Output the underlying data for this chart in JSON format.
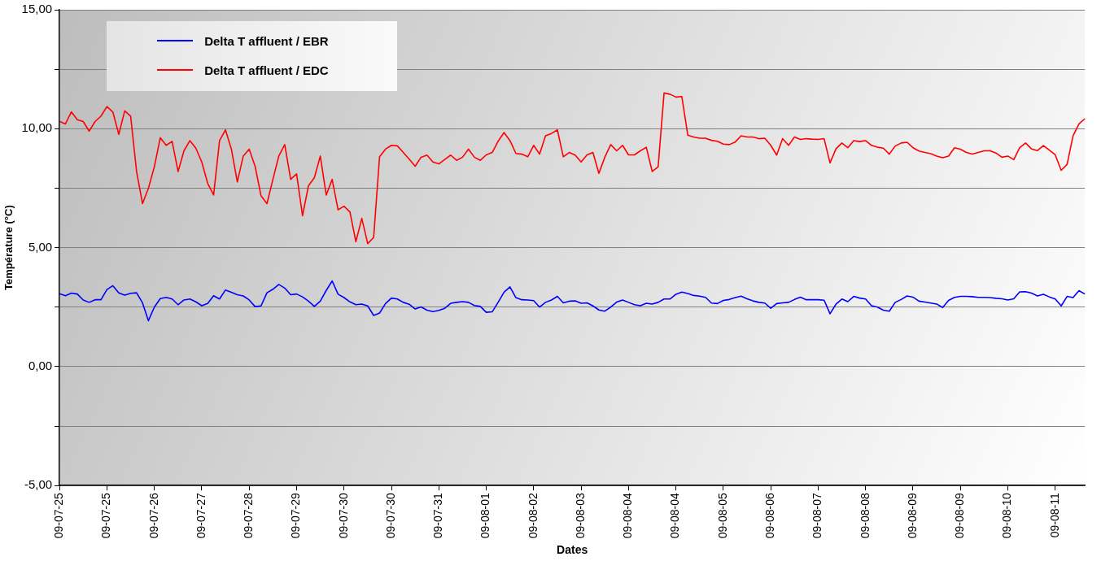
{
  "chart_data": {
    "type": "line",
    "xlabel": "Dates",
    "ylabel": "Température (°C)",
    "categories": [
      "09-07-25",
      null,
      null,
      null,
      null,
      null,
      null,
      null,
      "09-07-25",
      null,
      null,
      null,
      null,
      null,
      null,
      null,
      "09-07-26",
      null,
      null,
      null,
      null,
      null,
      null,
      null,
      "09-07-27",
      null,
      null,
      null,
      null,
      null,
      null,
      null,
      "09-07-28",
      null,
      null,
      null,
      null,
      null,
      null,
      null,
      "09-07-29",
      null,
      null,
      null,
      null,
      null,
      null,
      null,
      "09-07-30",
      null,
      null,
      null,
      null,
      null,
      null,
      null,
      "09-07-30",
      null,
      null,
      null,
      null,
      null,
      null,
      null,
      "09-07-31",
      null,
      null,
      null,
      null,
      null,
      null,
      null,
      "09-08-01",
      null,
      null,
      null,
      null,
      null,
      null,
      null,
      "09-08-02",
      null,
      null,
      null,
      null,
      null,
      null,
      null,
      "09-08-03",
      null,
      null,
      null,
      null,
      null,
      null,
      null,
      "09-08-04",
      null,
      null,
      null,
      null,
      null,
      null,
      null,
      "09-08-04",
      null,
      null,
      null,
      null,
      null,
      null,
      null,
      "09-08-05",
      null,
      null,
      null,
      null,
      null,
      null,
      null,
      "09-08-06",
      null,
      null,
      null,
      null,
      null,
      null,
      null,
      "09-08-07",
      null,
      null,
      null,
      null,
      null,
      null,
      null,
      "09-08-08",
      null,
      null,
      null,
      null,
      null,
      null,
      null,
      "09-08-09",
      null,
      null,
      null,
      null,
      null,
      null,
      null,
      "09-08-09",
      null,
      null,
      null,
      null,
      null,
      null,
      null,
      "09-08-10",
      null,
      null,
      null,
      null,
      null,
      null,
      null,
      "09-08-11",
      null,
      null,
      null,
      null,
      null
    ],
    "ylim": [
      -5,
      15
    ],
    "yticks": [
      {
        "value": -5,
        "label": "-5,00"
      },
      {
        "value": -2.5,
        "label": null
      },
      {
        "value": 0,
        "label": "0,00"
      },
      {
        "value": 2.5,
        "label": null
      },
      {
        "value": 5,
        "label": "5,00"
      },
      {
        "value": 7.5,
        "label": null
      },
      {
        "value": 10,
        "label": "10,00"
      },
      {
        "value": 12.5,
        "label": null
      },
      {
        "value": 15,
        "label": "15,00"
      }
    ],
    "grid": "y",
    "legend": "top left",
    "marker": "none",
    "line_style": "solid",
    "series": [
      {
        "name": "Delta T affluent / EBR",
        "color": "#0000ff",
        "values": [
          3.06,
          2.98,
          3.09,
          3.05,
          2.8,
          2.7,
          2.81,
          2.81,
          3.24,
          3.4,
          3.1,
          3.0,
          3.08,
          3.1,
          2.68,
          1.93,
          2.5,
          2.86,
          2.91,
          2.84,
          2.6,
          2.8,
          2.84,
          2.72,
          2.56,
          2.65,
          2.98,
          2.84,
          3.22,
          3.12,
          3.02,
          2.97,
          2.8,
          2.52,
          2.55,
          3.1,
          3.25,
          3.45,
          3.3,
          3.02,
          3.05,
          2.93,
          2.75,
          2.53,
          2.75,
          3.2,
          3.6,
          3.04,
          2.9,
          2.72,
          2.6,
          2.63,
          2.55,
          2.15,
          2.25,
          2.65,
          2.88,
          2.84,
          2.7,
          2.62,
          2.42,
          2.51,
          2.37,
          2.31,
          2.36,
          2.45,
          2.66,
          2.7,
          2.73,
          2.7,
          2.57,
          2.53,
          2.28,
          2.3,
          2.7,
          3.13,
          3.35,
          2.9,
          2.81,
          2.8,
          2.77,
          2.5,
          2.7,
          2.8,
          2.95,
          2.68,
          2.75,
          2.76,
          2.66,
          2.68,
          2.55,
          2.38,
          2.33,
          2.5,
          2.71,
          2.8,
          2.7,
          2.6,
          2.56,
          2.66,
          2.63,
          2.7,
          2.84,
          2.84,
          3.04,
          3.13,
          3.07,
          2.99,
          2.96,
          2.91,
          2.67,
          2.65,
          2.78,
          2.82,
          2.9,
          2.96,
          2.85,
          2.76,
          2.7,
          2.67,
          2.45,
          2.65,
          2.68,
          2.7,
          2.82,
          2.92,
          2.81,
          2.81,
          2.81,
          2.79,
          2.22,
          2.62,
          2.84,
          2.73,
          2.95,
          2.88,
          2.84,
          2.56,
          2.5,
          2.37,
          2.33,
          2.7,
          2.82,
          2.97,
          2.92,
          2.75,
          2.71,
          2.67,
          2.63,
          2.48,
          2.78,
          2.91,
          2.95,
          2.95,
          2.94,
          2.91,
          2.91,
          2.9,
          2.87,
          2.85,
          2.8,
          2.85,
          3.14,
          3.15,
          3.09,
          2.97,
          3.04,
          2.93,
          2.84,
          2.55,
          2.95,
          2.9,
          3.19,
          3.05
        ]
      },
      {
        "name": "Delta T affluent / EDC",
        "color": "#ff0000",
        "values": [
          10.31,
          10.2,
          10.71,
          10.38,
          10.3,
          9.9,
          10.3,
          10.53,
          10.93,
          10.7,
          9.76,
          10.75,
          10.53,
          8.2,
          6.85,
          7.5,
          8.4,
          9.62,
          9.3,
          9.47,
          8.2,
          9.07,
          9.5,
          9.18,
          8.6,
          7.7,
          7.21,
          9.5,
          9.95,
          9.14,
          7.76,
          8.85,
          9.14,
          8.42,
          7.18,
          6.85,
          7.87,
          8.85,
          9.33,
          7.87,
          8.1,
          6.34,
          7.6,
          7.94,
          8.85,
          7.21,
          7.87,
          6.59,
          6.74,
          6.5,
          5.25,
          6.23,
          5.17,
          5.43,
          8.82,
          9.14,
          9.3,
          9.28,
          9.0,
          8.72,
          8.42,
          8.8,
          8.89,
          8.6,
          8.52,
          8.71,
          8.89,
          8.67,
          8.8,
          9.14,
          8.8,
          8.67,
          8.9,
          9.0,
          9.47,
          9.84,
          9.5,
          8.96,
          8.93,
          8.82,
          9.3,
          8.93,
          9.7,
          9.8,
          9.95,
          8.82,
          9.0,
          8.89,
          8.6,
          8.9,
          9.0,
          8.12,
          8.8,
          9.33,
          9.07,
          9.3,
          8.9,
          8.9,
          9.07,
          9.22,
          8.2,
          8.4,
          11.5,
          11.45,
          11.33,
          11.35,
          9.73,
          9.65,
          9.6,
          9.6,
          9.51,
          9.47,
          9.35,
          9.33,
          9.44,
          9.7,
          9.65,
          9.65,
          9.58,
          9.6,
          9.3,
          8.89,
          9.58,
          9.3,
          9.65,
          9.55,
          9.58,
          9.56,
          9.55,
          9.58,
          8.56,
          9.15,
          9.4,
          9.2,
          9.5,
          9.46,
          9.5,
          9.3,
          9.22,
          9.18,
          8.93,
          9.27,
          9.4,
          9.43,
          9.2,
          9.06,
          9.0,
          8.95,
          8.85,
          8.78,
          8.85,
          9.2,
          9.14,
          9.0,
          8.93,
          9.0,
          9.07,
          9.07,
          8.98,
          8.8,
          8.85,
          8.7,
          9.2,
          9.4,
          9.15,
          9.08,
          9.29,
          9.1,
          8.9,
          8.25,
          8.5,
          9.7,
          10.2,
          10.42
        ]
      }
    ]
  }
}
